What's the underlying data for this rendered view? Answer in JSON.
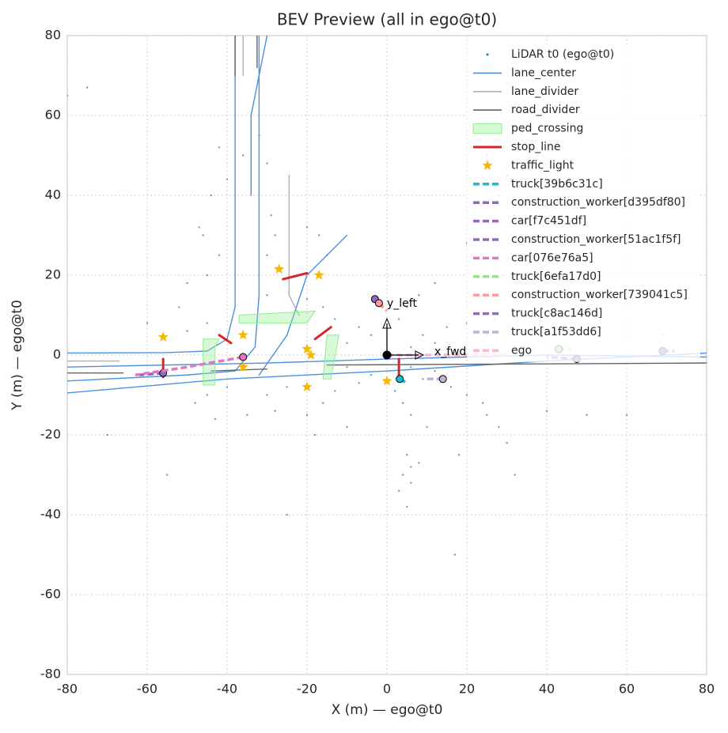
{
  "chart_data": {
    "type": "bev",
    "title": "BEV Preview (all in ego@t0)",
    "x_label": "X (m) — ego@t0",
    "y_label": "Y (m) — ego@t0",
    "xlim": [
      -80,
      80
    ],
    "ylim": [
      -80,
      80
    ],
    "xticks": [
      -80,
      -60,
      -40,
      -20,
      0,
      20,
      40,
      60,
      80
    ],
    "yticks": [
      -80,
      -60,
      -40,
      -20,
      0,
      20,
      40,
      60,
      80
    ],
    "grid": true,
    "legend": "upper right",
    "annotations": [
      "x_fwd",
      "y_left"
    ],
    "series": [
      {
        "name": "LiDAR t0 (ego@t0)",
        "kind": "points",
        "color": "#1f77b4",
        "x": [
          6,
          6,
          -4,
          -4,
          9,
          9,
          -7,
          -7,
          12,
          12,
          -10,
          -10,
          3,
          2,
          15,
          16,
          -13,
          -13,
          5,
          4,
          20,
          20,
          -16,
          -16,
          8,
          6,
          25,
          24,
          -20,
          -20,
          12,
          10,
          -30,
          -35,
          -40,
          -45,
          -25,
          -28,
          -48,
          -43,
          -18,
          -10,
          -45,
          -50,
          -52,
          -60,
          -50,
          -45,
          -42,
          -46,
          -44,
          -40,
          -36,
          -32,
          -30,
          -29,
          -28,
          -30,
          -17,
          -15,
          -20,
          -42,
          -47,
          -30,
          5,
          6,
          4,
          3,
          6,
          8,
          5,
          17,
          25,
          28,
          30,
          32,
          40,
          50,
          60,
          18,
          25,
          30,
          28,
          32,
          29,
          20,
          27,
          35,
          69,
          -80,
          -75,
          -70,
          -55,
          -25
        ],
        "y": [
          2,
          -3,
          5,
          -5,
          5,
          -6,
          7,
          -7,
          3,
          -4,
          3,
          -3,
          9,
          -9,
          7,
          -8,
          9,
          -9,
          12,
          -12,
          8,
          -10,
          12,
          -12,
          15,
          -15,
          5,
          -12,
          14,
          -15,
          18,
          -18,
          -10,
          -15,
          -8,
          -10,
          -8,
          -14,
          -12,
          -16,
          -20,
          -18,
          8,
          6,
          12,
          8,
          18,
          20,
          25,
          30,
          40,
          44,
          50,
          55,
          48,
          35,
          30,
          25,
          30,
          25,
          32,
          52,
          32,
          15,
          -25,
          -28,
          -30,
          -34,
          -32,
          -27,
          -38,
          -50,
          -15,
          -18,
          -22,
          -30,
          -14,
          -15,
          -15,
          -25,
          50,
          45,
          40,
          35,
          20,
          28,
          9,
          10,
          5,
          65,
          67,
          -20,
          -30,
          -40
        ]
      },
      {
        "name": "lane_center",
        "kind": "line",
        "color": "#4a8fe0",
        "x": [
          -80,
          -55,
          -45,
          -40,
          -38,
          -38,
          -38,
          null,
          -80,
          -50,
          -38,
          -33,
          -32,
          -32,
          -32,
          null,
          -80,
          -40,
          0,
          40,
          80,
          null,
          -80,
          -30,
          0,
          40,
          80,
          null,
          -32,
          -25,
          -20,
          -10,
          null,
          -30,
          -34,
          -34
        ],
        "y": [
          0.5,
          0.6,
          1,
          4,
          12,
          40,
          80,
          null,
          -6.5,
          -5,
          -4,
          2,
          15,
          50,
          80,
          null,
          -9.5,
          -6,
          -4,
          -1.5,
          0.5,
          null,
          -3,
          -2,
          -1,
          0,
          -0.5,
          null,
          -5,
          5,
          20,
          30,
          null,
          80,
          60,
          40
        ]
      },
      {
        "name": "lane_divider",
        "kind": "line",
        "color": "#b0b0b0",
        "x": [
          -80,
          -67,
          null,
          -36,
          -36,
          null,
          -24.5,
          -24.5,
          -22
        ],
        "y": [
          -1.5,
          -1.5,
          null,
          80,
          70,
          null,
          45,
          15,
          10
        ]
      },
      {
        "name": "road_divider",
        "kind": "line",
        "color": "#666666",
        "x": [
          -80,
          -66,
          null,
          -44,
          -30,
          null,
          -15,
          80,
          null,
          -38,
          -38,
          null,
          -32.5,
          -32.5
        ],
        "y": [
          -4.5,
          -4.5,
          null,
          -4,
          -3.5,
          null,
          -2.5,
          -2,
          null,
          80,
          70,
          null,
          80,
          72
        ]
      },
      {
        "name": "ped_crossing",
        "kind": "polygon",
        "color": "#90ee90",
        "x": [
          -46,
          -43,
          -43,
          -42,
          -46,
          null,
          -37,
          -20,
          -18,
          -37,
          null,
          -16,
          -14,
          -12,
          -15
        ],
        "y": [
          -7.5,
          -7.5,
          2,
          4,
          4,
          null,
          8,
          8,
          11,
          10,
          null,
          -6,
          -6,
          5,
          5
        ]
      },
      {
        "name": "stop_line",
        "kind": "line",
        "color": "#d62728",
        "x": [
          -56,
          -56,
          null,
          -42,
          -39,
          null,
          -26,
          -20,
          null,
          -18,
          -14,
          null,
          3,
          3
        ],
        "y": [
          -1,
          -5.5,
          null,
          5,
          3,
          null,
          19,
          20.5,
          null,
          4,
          7,
          null,
          -1,
          -6
        ]
      },
      {
        "name": "traffic_light",
        "kind": "star",
        "color": "#f5b800",
        "x": [
          -56,
          -36,
          -36,
          -27,
          -17,
          -20,
          -19,
          -20,
          0
        ],
        "y": [
          4.5,
          5,
          -3,
          21.5,
          20,
          1.5,
          0,
          -8,
          -6.5
        ]
      },
      {
        "name": "truck[39b6c31c]",
        "kind": "agent",
        "color": "#17becf",
        "x": [
          3.2,
          5
        ],
        "y": [
          -6,
          -7
        ]
      },
      {
        "name": "construction_worker[d395df80]",
        "kind": "agent",
        "color": "#9467bd",
        "x": [
          -3,
          -1
        ],
        "y": [
          14,
          12
        ]
      },
      {
        "name": "car[f7c451df]",
        "kind": "agent",
        "color": "#9467bd",
        "x": [
          -56,
          -62
        ],
        "y": [
          -4.5,
          -5
        ]
      },
      {
        "name": "construction_worker[51ac1f5f]",
        "kind": "agent",
        "color": "#9467bd",
        "x": [
          69,
          72
        ],
        "y": [
          1,
          1
        ]
      },
      {
        "name": "car[076e76a5]",
        "kind": "agent",
        "color": "#e377c2",
        "x": [
          -36,
          -50,
          -63
        ],
        "y": [
          -0.5,
          -3,
          -5
        ]
      },
      {
        "name": "truck[6efa17d0]",
        "kind": "agent",
        "color": "#98df8a",
        "x": [
          43,
          46
        ],
        "y": [
          1.5,
          1.5
        ]
      },
      {
        "name": "construction_worker[739041c5]",
        "kind": "agent",
        "color": "#ff9896",
        "x": [
          -2,
          0
        ],
        "y": [
          13,
          11
        ]
      },
      {
        "name": "truck[c8ac146d]",
        "kind": "agent",
        "color": "#9467bd",
        "x": [
          47.5,
          40
        ],
        "y": [
          -1,
          -0.5
        ]
      },
      {
        "name": "truck[a1f53dd6]",
        "kind": "agent",
        "color": "#c5b0d5",
        "x": [
          14,
          10
        ],
        "y": [
          -6,
          -6
        ]
      },
      {
        "name": "ego",
        "kind": "ego",
        "color": "#f7b6d2",
        "x": [
          0,
          30
        ],
        "y": [
          0,
          0
        ]
      }
    ]
  }
}
